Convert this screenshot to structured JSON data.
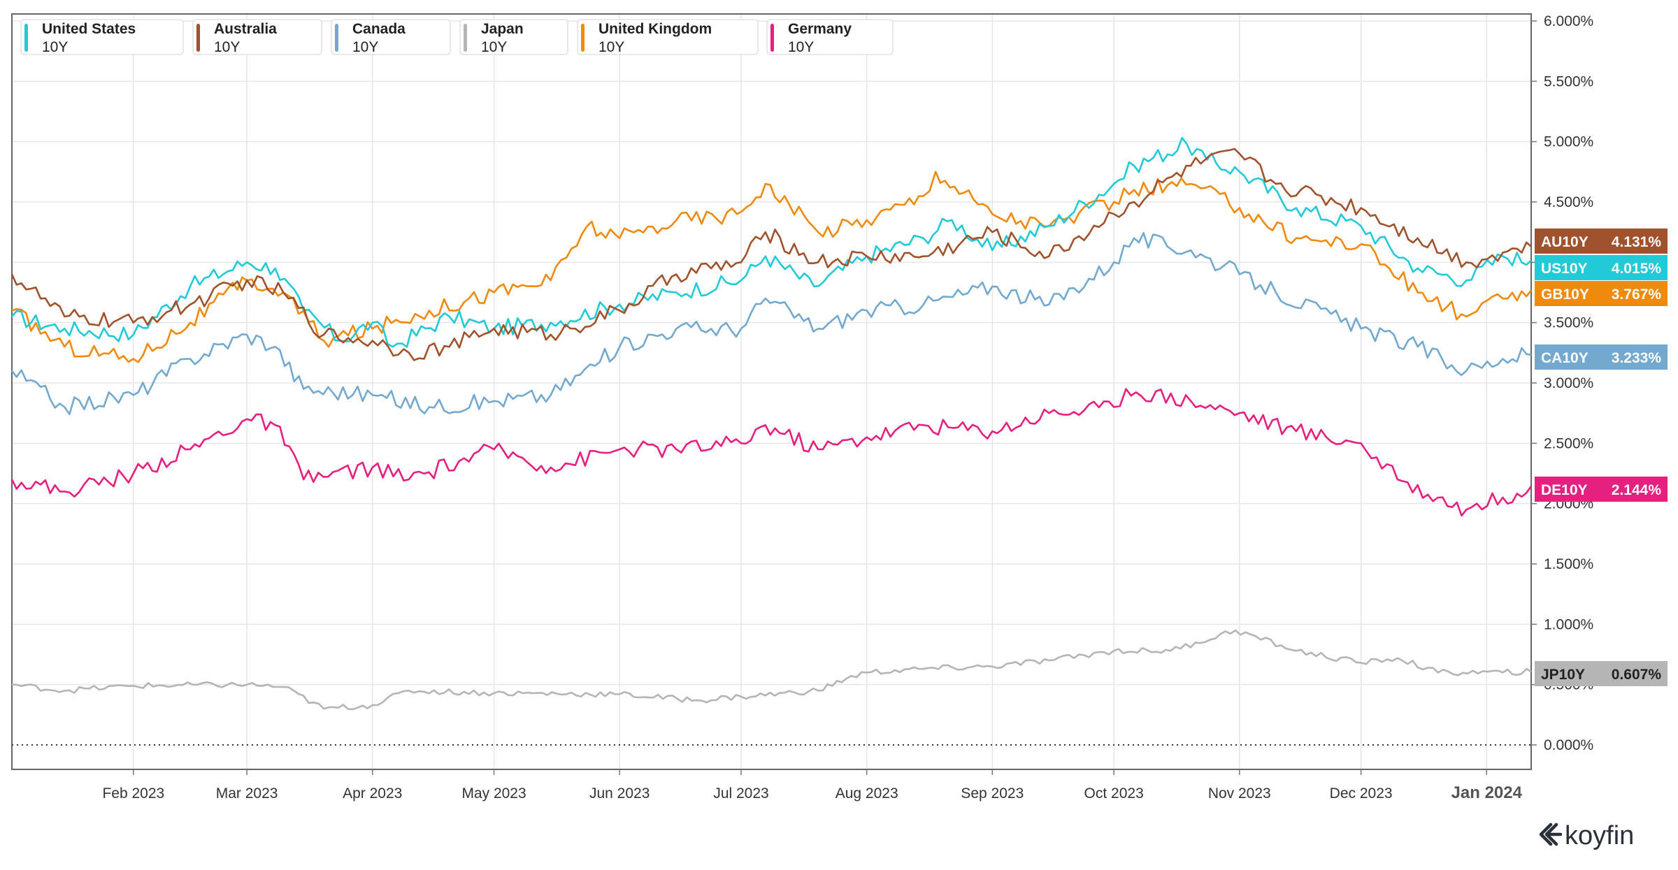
{
  "brand": {
    "name": "koyfin"
  },
  "chart_data": {
    "type": "line",
    "title": "",
    "xlabel": "",
    "ylabel": "",
    "ylim": [
      0,
      6
    ],
    "y_ticks": [
      "0.000%",
      "0.500%",
      "1.000%",
      "1.500%",
      "2.000%",
      "2.500%",
      "3.000%",
      "3.500%",
      "4.000%",
      "4.500%",
      "5.000%",
      "5.500%",
      "6.000%"
    ],
    "x_ticks": [
      {
        "label": "Feb 2023",
        "date": "2023-02-01"
      },
      {
        "label": "Mar 2023",
        "date": "2023-03-01"
      },
      {
        "label": "Apr 2023",
        "date": "2023-04-01"
      },
      {
        "label": "May 2023",
        "date": "2023-05-01"
      },
      {
        "label": "Jun 2023",
        "date": "2023-06-01"
      },
      {
        "label": "Jul 2023",
        "date": "2023-07-01"
      },
      {
        "label": "Aug 2023",
        "date": "2023-08-01"
      },
      {
        "label": "Sep 2023",
        "date": "2023-09-01"
      },
      {
        "label": "Oct 2023",
        "date": "2023-10-01"
      },
      {
        "label": "Nov 2023",
        "date": "2023-11-01"
      },
      {
        "label": "Dec 2023",
        "date": "2023-12-01"
      },
      {
        "label": "Jan 2024",
        "date": "2024-01-01"
      }
    ],
    "x_range": [
      "2023-01-02",
      "2024-01-12"
    ],
    "grid": true,
    "legend_position": "top-left",
    "series": [
      {
        "name": "United States",
        "sub": "10Y",
        "tag": "US10Y",
        "last": "4.015%",
        "color": "#22c9d6",
        "order": 1,
        "points": [
          [
            "2023-01-02",
            3.55
          ],
          [
            "2023-01-15",
            3.45
          ],
          [
            "2023-02-01",
            3.4
          ],
          [
            "2023-02-15",
            3.8
          ],
          [
            "2023-03-01",
            4.0
          ],
          [
            "2023-03-08",
            3.95
          ],
          [
            "2023-03-15",
            3.6
          ],
          [
            "2023-03-24",
            3.35
          ],
          [
            "2023-04-01",
            3.5
          ],
          [
            "2023-04-06",
            3.3
          ],
          [
            "2023-04-20",
            3.55
          ],
          [
            "2023-05-01",
            3.45
          ],
          [
            "2023-05-15",
            3.5
          ],
          [
            "2023-06-01",
            3.65
          ],
          [
            "2023-06-15",
            3.75
          ],
          [
            "2023-07-01",
            3.85
          ],
          [
            "2023-07-07",
            4.05
          ],
          [
            "2023-07-19",
            3.8
          ],
          [
            "2023-08-01",
            4.05
          ],
          [
            "2023-08-15",
            4.2
          ],
          [
            "2023-08-22",
            4.35
          ],
          [
            "2023-09-01",
            4.1
          ],
          [
            "2023-09-15",
            4.3
          ],
          [
            "2023-10-01",
            4.65
          ],
          [
            "2023-10-06",
            4.8
          ],
          [
            "2023-10-19",
            4.98
          ],
          [
            "2023-10-24",
            4.85
          ],
          [
            "2023-11-01",
            4.75
          ],
          [
            "2023-11-15",
            4.45
          ],
          [
            "2023-12-01",
            4.3
          ],
          [
            "2023-12-15",
            3.95
          ],
          [
            "2023-12-27",
            3.85
          ],
          [
            "2024-01-05",
            4.05
          ],
          [
            "2024-01-12",
            4.015
          ]
        ]
      },
      {
        "name": "Australia",
        "sub": "10Y",
        "tag": "AU10Y",
        "last": "4.131%",
        "color": "#a0522d",
        "order": 0,
        "points": [
          [
            "2023-01-02",
            3.9
          ],
          [
            "2023-01-15",
            3.55
          ],
          [
            "2023-02-01",
            3.5
          ],
          [
            "2023-02-15",
            3.65
          ],
          [
            "2023-03-01",
            3.85
          ],
          [
            "2023-03-10",
            3.75
          ],
          [
            "2023-03-20",
            3.4
          ],
          [
            "2023-04-01",
            3.35
          ],
          [
            "2023-04-10",
            3.25
          ],
          [
            "2023-04-20",
            3.3
          ],
          [
            "2023-05-01",
            3.45
          ],
          [
            "2023-05-15",
            3.4
          ],
          [
            "2023-06-01",
            3.6
          ],
          [
            "2023-06-15",
            3.9
          ],
          [
            "2023-07-01",
            4.0
          ],
          [
            "2023-07-07",
            4.25
          ],
          [
            "2023-07-20",
            4.0
          ],
          [
            "2023-08-01",
            4.05
          ],
          [
            "2023-08-15",
            4.05
          ],
          [
            "2023-09-01",
            4.25
          ],
          [
            "2023-09-15",
            4.05
          ],
          [
            "2023-10-01",
            4.4
          ],
          [
            "2023-10-06",
            4.5
          ],
          [
            "2023-10-20",
            4.8
          ],
          [
            "2023-11-01",
            4.9
          ],
          [
            "2023-11-10",
            4.65
          ],
          [
            "2023-12-01",
            4.45
          ],
          [
            "2023-12-15",
            4.2
          ],
          [
            "2023-12-27",
            4.0
          ],
          [
            "2024-01-05",
            4.08
          ],
          [
            "2024-01-12",
            4.131
          ]
        ]
      },
      {
        "name": "Canada",
        "sub": "10Y",
        "tag": "CA10Y",
        "last": "3.233%",
        "color": "#74a9cf",
        "order": 3,
        "points": [
          [
            "2023-01-02",
            3.1
          ],
          [
            "2023-01-15",
            2.8
          ],
          [
            "2023-02-01",
            2.9
          ],
          [
            "2023-02-15",
            3.2
          ],
          [
            "2023-03-01",
            3.4
          ],
          [
            "2023-03-08",
            3.3
          ],
          [
            "2023-03-15",
            2.95
          ],
          [
            "2023-04-01",
            2.9
          ],
          [
            "2023-04-15",
            2.8
          ],
          [
            "2023-05-01",
            2.85
          ],
          [
            "2023-05-15",
            2.9
          ],
          [
            "2023-06-01",
            3.3
          ],
          [
            "2023-06-15",
            3.45
          ],
          [
            "2023-07-01",
            3.45
          ],
          [
            "2023-07-07",
            3.7
          ],
          [
            "2023-07-20",
            3.45
          ],
          [
            "2023-08-01",
            3.6
          ],
          [
            "2023-08-15",
            3.65
          ],
          [
            "2023-09-01",
            3.8
          ],
          [
            "2023-09-15",
            3.65
          ],
          [
            "2023-10-01",
            4.0
          ],
          [
            "2023-10-06",
            4.2
          ],
          [
            "2023-10-20",
            4.1
          ],
          [
            "2023-11-01",
            3.9
          ],
          [
            "2023-11-10",
            3.75
          ],
          [
            "2023-12-01",
            3.45
          ],
          [
            "2023-12-15",
            3.3
          ],
          [
            "2023-12-27",
            3.1
          ],
          [
            "2024-01-05",
            3.2
          ],
          [
            "2024-01-12",
            3.233
          ]
        ]
      },
      {
        "name": "Japan",
        "sub": "10Y",
        "tag": "JP10Y",
        "last": "0.607%",
        "color": "#b5b5b5",
        "order": 5,
        "points": [
          [
            "2023-01-02",
            0.5
          ],
          [
            "2023-01-15",
            0.45
          ],
          [
            "2023-02-01",
            0.49
          ],
          [
            "2023-03-01",
            0.5
          ],
          [
            "2023-03-10",
            0.48
          ],
          [
            "2023-03-20",
            0.3
          ],
          [
            "2023-04-01",
            0.33
          ],
          [
            "2023-04-10",
            0.45
          ],
          [
            "2023-05-01",
            0.43
          ],
          [
            "2023-06-01",
            0.42
          ],
          [
            "2023-06-20",
            0.37
          ],
          [
            "2023-07-01",
            0.4
          ],
          [
            "2023-07-20",
            0.45
          ],
          [
            "2023-07-27",
            0.55
          ],
          [
            "2023-08-01",
            0.6
          ],
          [
            "2023-08-15",
            0.63
          ],
          [
            "2023-09-01",
            0.65
          ],
          [
            "2023-09-15",
            0.7
          ],
          [
            "2023-10-01",
            0.78
          ],
          [
            "2023-10-15",
            0.78
          ],
          [
            "2023-10-31",
            0.95
          ],
          [
            "2023-11-15",
            0.78
          ],
          [
            "2023-12-01",
            0.68
          ],
          [
            "2023-12-10",
            0.72
          ],
          [
            "2023-12-20",
            0.6
          ],
          [
            "2024-01-05",
            0.6
          ],
          [
            "2024-01-12",
            0.607
          ]
        ]
      },
      {
        "name": "United Kingdom",
        "sub": "10Y",
        "tag": "GB10Y",
        "last": "3.767%",
        "color": "#f08a0c",
        "order": 2,
        "points": [
          [
            "2023-01-02",
            3.6
          ],
          [
            "2023-01-15",
            3.3
          ],
          [
            "2023-02-01",
            3.2
          ],
          [
            "2023-02-15",
            3.5
          ],
          [
            "2023-03-01",
            3.85
          ],
          [
            "2023-03-10",
            3.75
          ],
          [
            "2023-03-20",
            3.35
          ],
          [
            "2023-04-01",
            3.45
          ],
          [
            "2023-04-15",
            3.6
          ],
          [
            "2023-05-01",
            3.75
          ],
          [
            "2023-05-15",
            3.85
          ],
          [
            "2023-05-24",
            4.3
          ],
          [
            "2023-06-01",
            4.2
          ],
          [
            "2023-06-15",
            4.35
          ],
          [
            "2023-06-30",
            4.4
          ],
          [
            "2023-07-07",
            4.65
          ],
          [
            "2023-07-20",
            4.25
          ],
          [
            "2023-08-01",
            4.35
          ],
          [
            "2023-08-15",
            4.55
          ],
          [
            "2023-08-18",
            4.75
          ],
          [
            "2023-09-01",
            4.4
          ],
          [
            "2023-09-15",
            4.3
          ],
          [
            "2023-10-01",
            4.5
          ],
          [
            "2023-10-06",
            4.6
          ],
          [
            "2023-10-20",
            4.65
          ],
          [
            "2023-11-01",
            4.45
          ],
          [
            "2023-11-15",
            4.2
          ],
          [
            "2023-12-01",
            4.15
          ],
          [
            "2023-12-15",
            3.75
          ],
          [
            "2023-12-27",
            3.55
          ],
          [
            "2024-01-05",
            3.7
          ],
          [
            "2024-01-12",
            3.767
          ]
        ]
      },
      {
        "name": "Germany",
        "sub": "10Y",
        "tag": "DE10Y",
        "last": "2.144%",
        "color": "#e5207e",
        "order": 4,
        "points": [
          [
            "2023-01-02",
            2.2
          ],
          [
            "2023-01-15",
            2.1
          ],
          [
            "2023-02-01",
            2.25
          ],
          [
            "2023-02-15",
            2.45
          ],
          [
            "2023-03-01",
            2.7
          ],
          [
            "2023-03-08",
            2.65
          ],
          [
            "2023-03-15",
            2.2
          ],
          [
            "2023-04-01",
            2.3
          ],
          [
            "2023-04-10",
            2.2
          ],
          [
            "2023-05-01",
            2.45
          ],
          [
            "2023-05-15",
            2.3
          ],
          [
            "2023-06-01",
            2.45
          ],
          [
            "2023-06-15",
            2.45
          ],
          [
            "2023-07-01",
            2.5
          ],
          [
            "2023-07-07",
            2.65
          ],
          [
            "2023-07-20",
            2.45
          ],
          [
            "2023-08-01",
            2.55
          ],
          [
            "2023-08-15",
            2.65
          ],
          [
            "2023-09-01",
            2.6
          ],
          [
            "2023-09-15",
            2.75
          ],
          [
            "2023-10-01",
            2.8
          ],
          [
            "2023-10-04",
            2.95
          ],
          [
            "2023-10-20",
            2.85
          ],
          [
            "2023-11-01",
            2.75
          ],
          [
            "2023-11-15",
            2.6
          ],
          [
            "2023-12-01",
            2.5
          ],
          [
            "2023-12-10",
            2.2
          ],
          [
            "2023-12-20",
            2.05
          ],
          [
            "2023-12-27",
            1.95
          ],
          [
            "2024-01-05",
            2.05
          ],
          [
            "2024-01-12",
            2.144
          ]
        ]
      }
    ]
  }
}
